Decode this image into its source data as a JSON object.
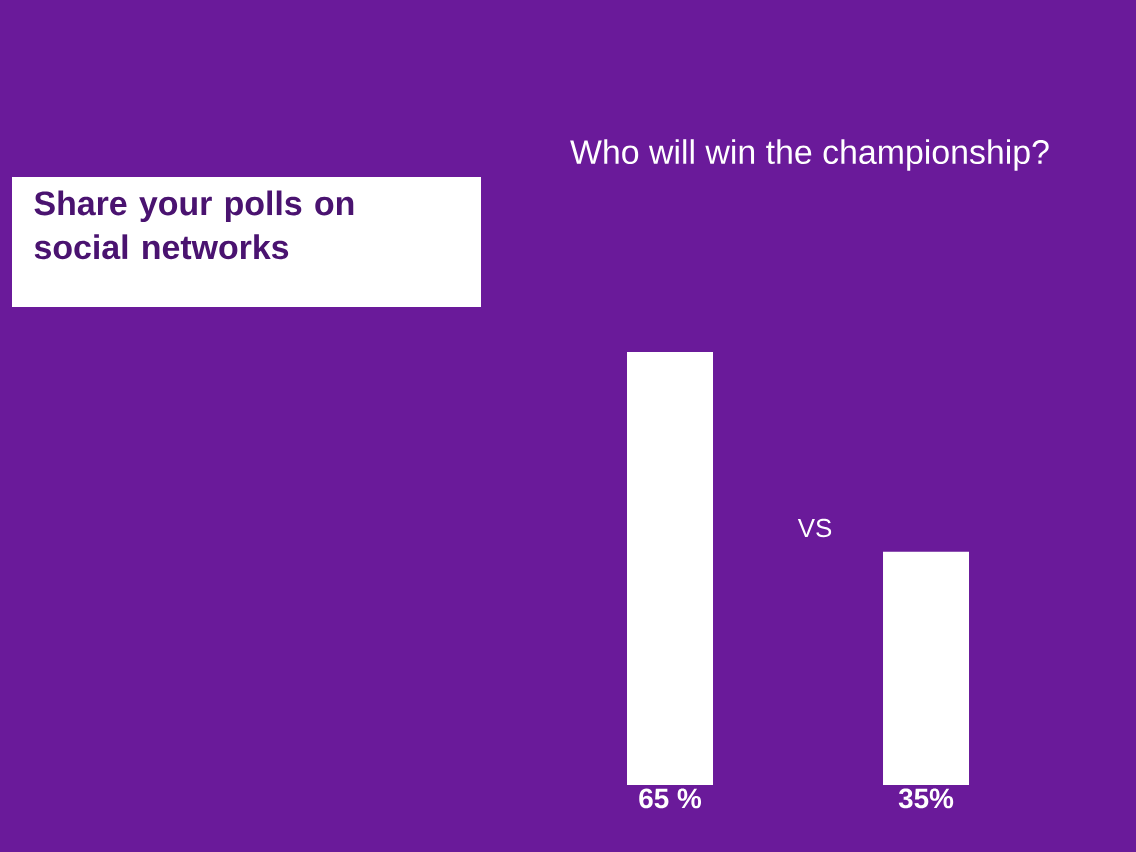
{
  "chart_data": {
    "type": "bar",
    "title": "Who will win the championship?",
    "categories": [
      null,
      null
    ],
    "values": [
      65,
      35
    ],
    "value_labels": [
      "65 %",
      "35%"
    ],
    "color": "#ffffff",
    "annotations": [
      "Share your polls on social networks",
      "VS"
    ]
  }
}
